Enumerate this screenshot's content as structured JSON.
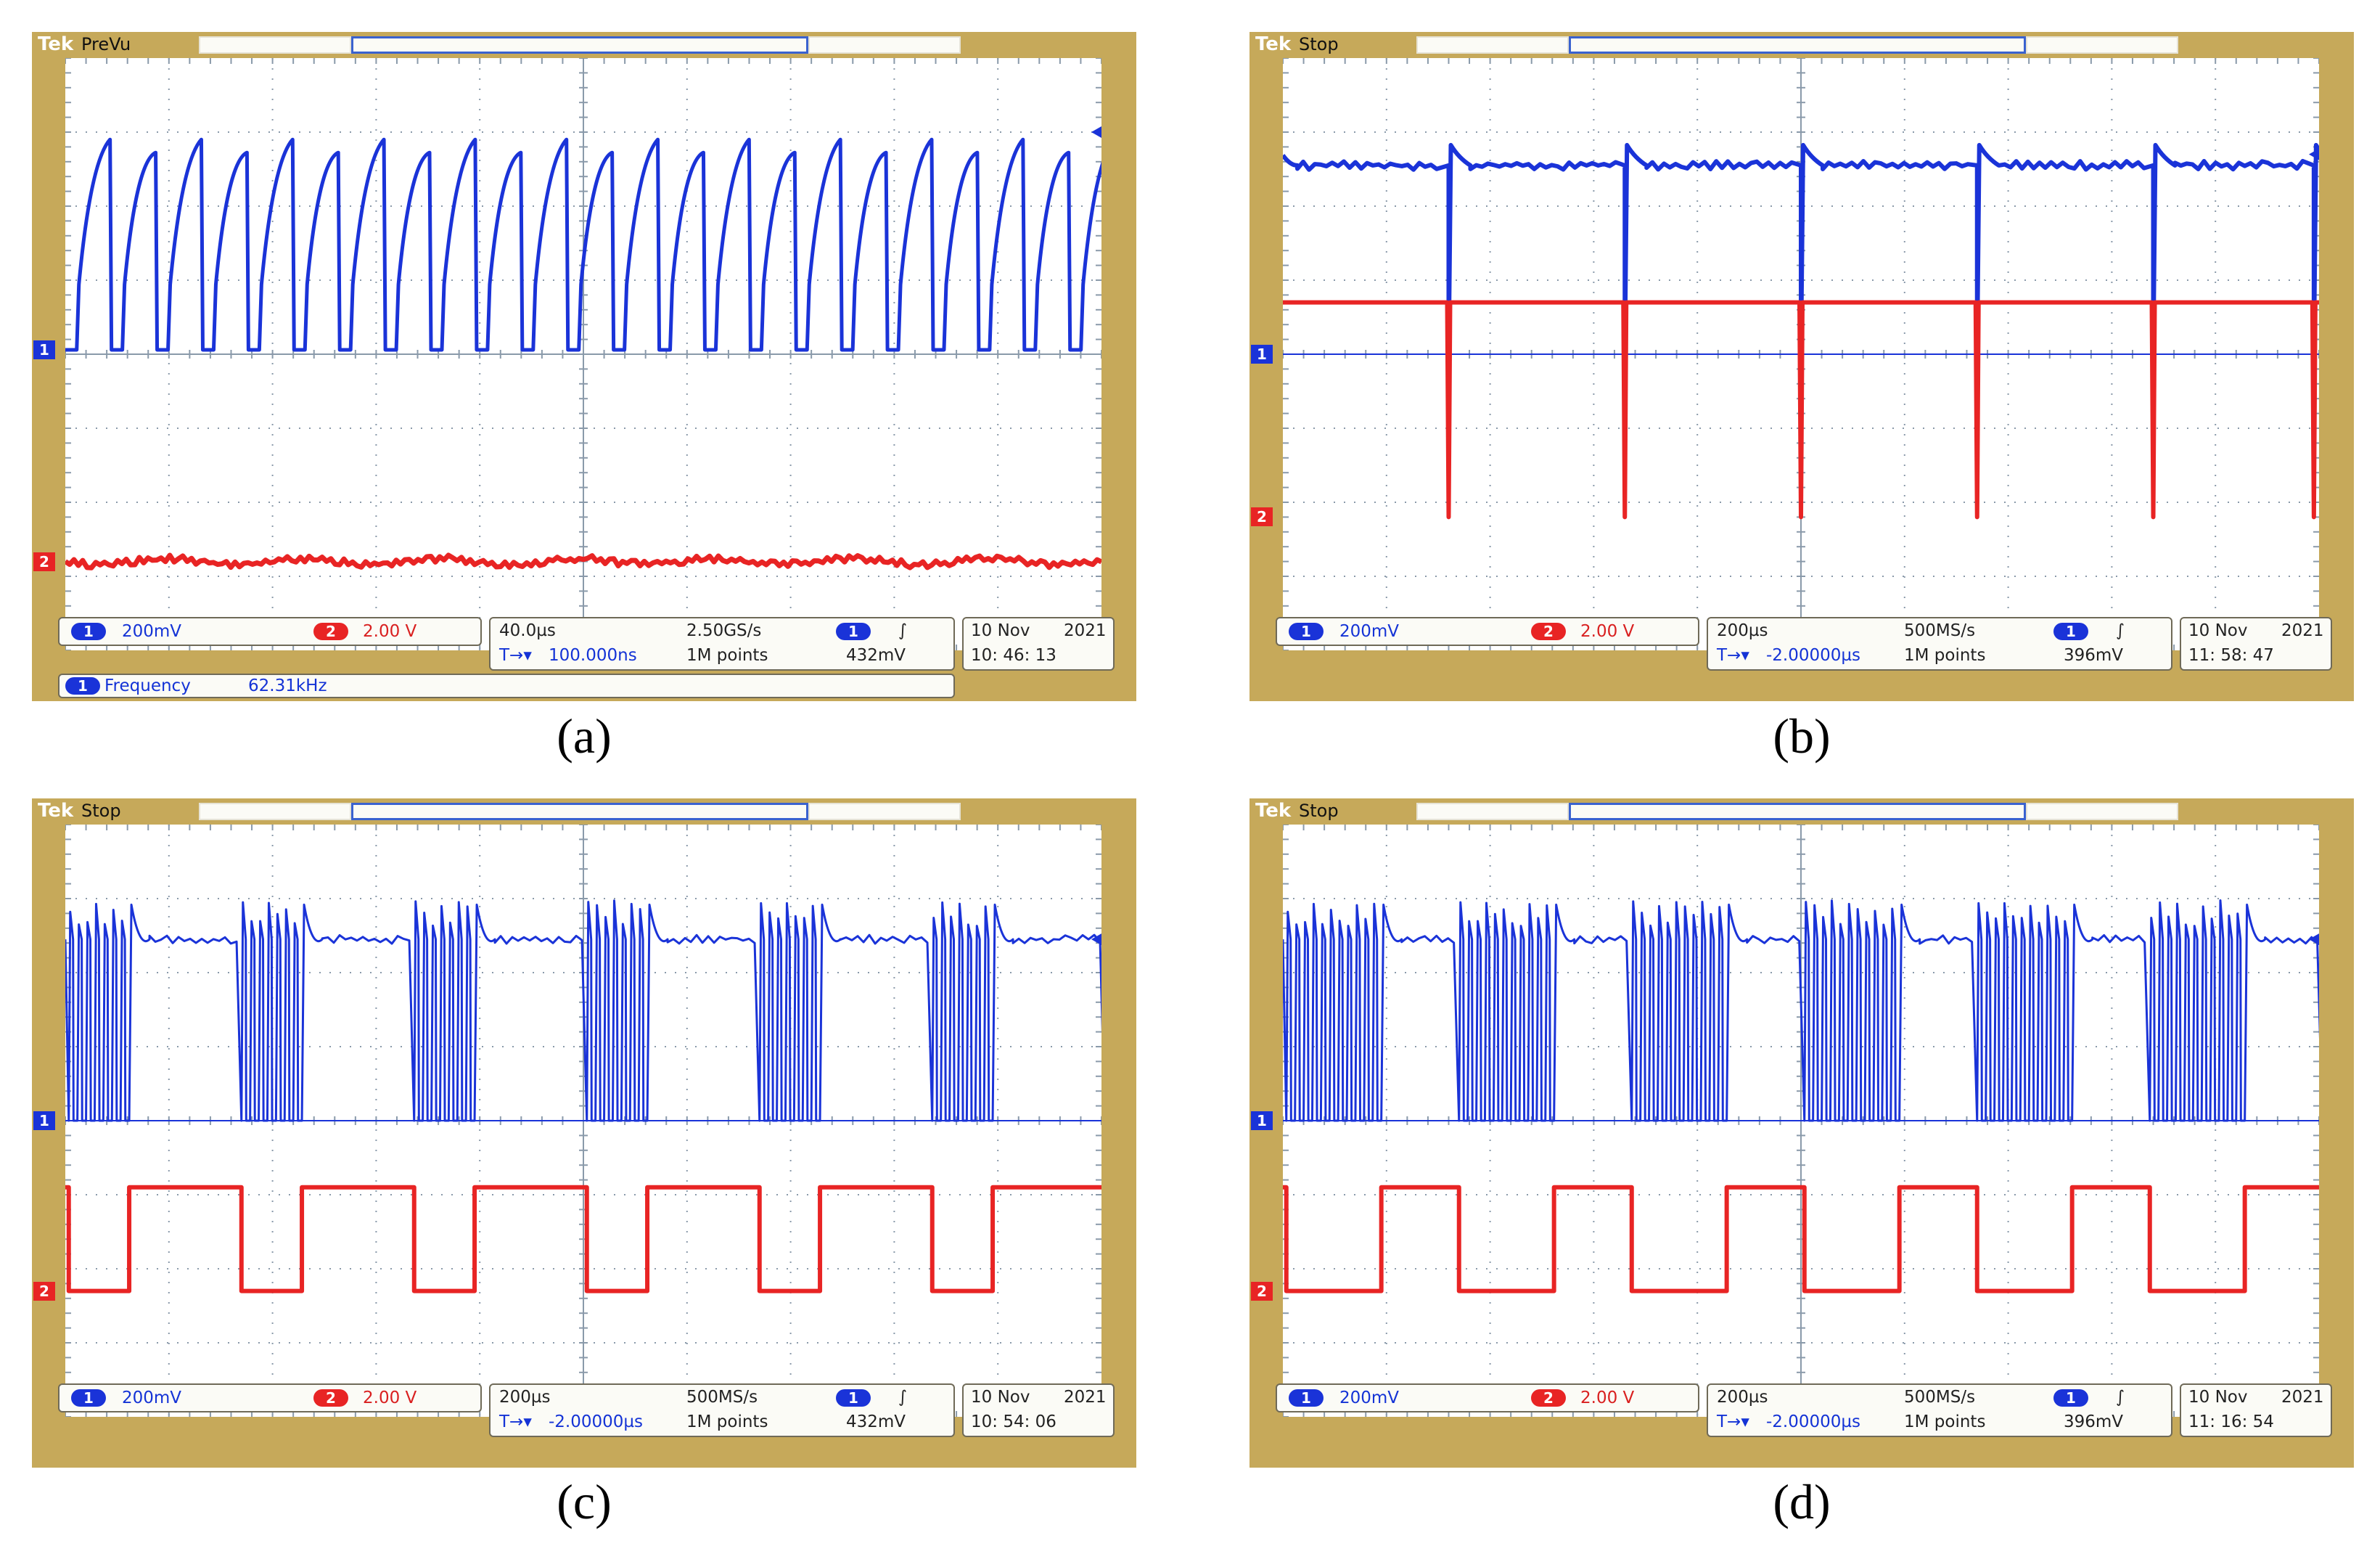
{
  "panels": [
    {
      "caption": "(a)",
      "status": "PreVu",
      "ch1_scale": "200mV",
      "ch2_scale": "2.00 V",
      "timebase": "40.0µs",
      "trigger_pos": "100.000ns",
      "sample_rate": "2.50GS/s",
      "record_length": "1M points",
      "trigger_level": "432mV",
      "date": "10 Nov",
      "year": "2021",
      "time": "10: 46: 13",
      "measurement_label": "Frequency",
      "measurement_value": "62.31kHz"
    },
    {
      "caption": "(b)",
      "status": "Stop",
      "ch1_scale": "200mV",
      "ch2_scale": "2.00 V",
      "timebase": "200µs",
      "trigger_pos": "-2.00000µs",
      "sample_rate": "500MS/s",
      "record_length": "1M points",
      "trigger_level": "396mV",
      "date": "10 Nov",
      "year": "2021",
      "time": "11: 58: 47"
    },
    {
      "caption": "(c)",
      "status": "Stop",
      "ch1_scale": "200mV",
      "ch2_scale": "2.00 V",
      "timebase": "200µs",
      "trigger_pos": "-2.00000µs",
      "sample_rate": "500MS/s",
      "record_length": "1M points",
      "trigger_level": "432mV",
      "date": "10 Nov",
      "year": "2021",
      "time": "10: 54: 06"
    },
    {
      "caption": "(d)",
      "status": "Stop",
      "ch1_scale": "200mV",
      "ch2_scale": "2.00 V",
      "timebase": "200µs",
      "trigger_pos": "-2.00000µs",
      "sample_rate": "500MS/s",
      "record_length": "1M points",
      "trigger_level": "396mV",
      "date": "10 Nov",
      "year": "2021",
      "time": "11: 16: 54"
    }
  ],
  "labels": {
    "brand": "Tek",
    "ch1": "1",
    "ch2": "2",
    "trigger_marker": "T",
    "trigger_slope": "∫",
    "trig_prefix": "T→▾"
  },
  "colors": {
    "ch1": "#1a33d8",
    "ch2": "#e82424",
    "bezel": "#c6a95a",
    "grid": "#8a9aaa"
  }
}
